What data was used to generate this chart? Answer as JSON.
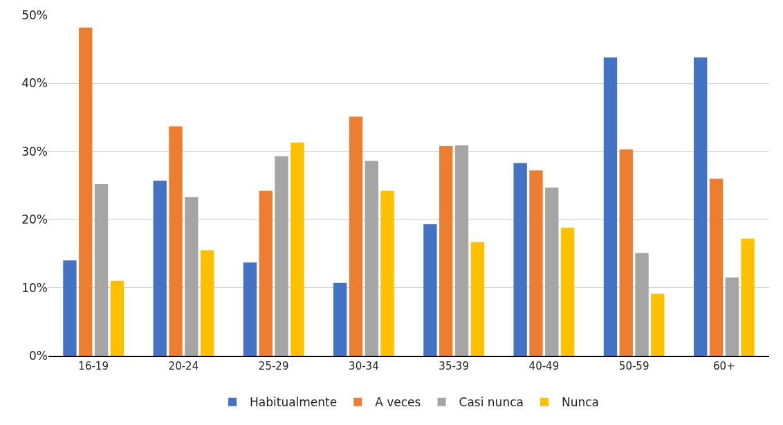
{
  "chart_data": {
    "type": "bar",
    "categories": [
      "16-19",
      "20-24",
      "25-29",
      "30-34",
      "35-39",
      "40-49",
      "50-59",
      "60+"
    ],
    "series": [
      {
        "name": "Habitualmente",
        "color": "#4472c4",
        "values": [
          14,
          25.7,
          13.7,
          10.7,
          19.3,
          28.3,
          43.8,
          43.8
        ]
      },
      {
        "name": "A veces",
        "color": "#ed7d31",
        "values": [
          48.2,
          33.7,
          24.2,
          35.1,
          30.8,
          27.2,
          30.3,
          26
        ]
      },
      {
        "name": "Casi nunca",
        "color": "#a5a5a5",
        "values": [
          25.2,
          23.3,
          29.3,
          28.6,
          30.9,
          24.7,
          15.1,
          11.5
        ]
      },
      {
        "name": "Nunca",
        "color": "#ffc000",
        "values": [
          11,
          15.5,
          31.3,
          24.2,
          16.7,
          18.8,
          9.1,
          17.2
        ]
      }
    ],
    "ylim": [
      0,
      50
    ],
    "yticks": [
      {
        "value": 0,
        "label": "0%"
      },
      {
        "value": 10,
        "label": "10%"
      },
      {
        "value": 20,
        "label": "20%"
      },
      {
        "value": 30,
        "label": "30%"
      },
      {
        "value": 40,
        "label": "40%"
      },
      {
        "value": 50,
        "label": "50%"
      }
    ],
    "grid": "y",
    "legend": "bottom"
  }
}
